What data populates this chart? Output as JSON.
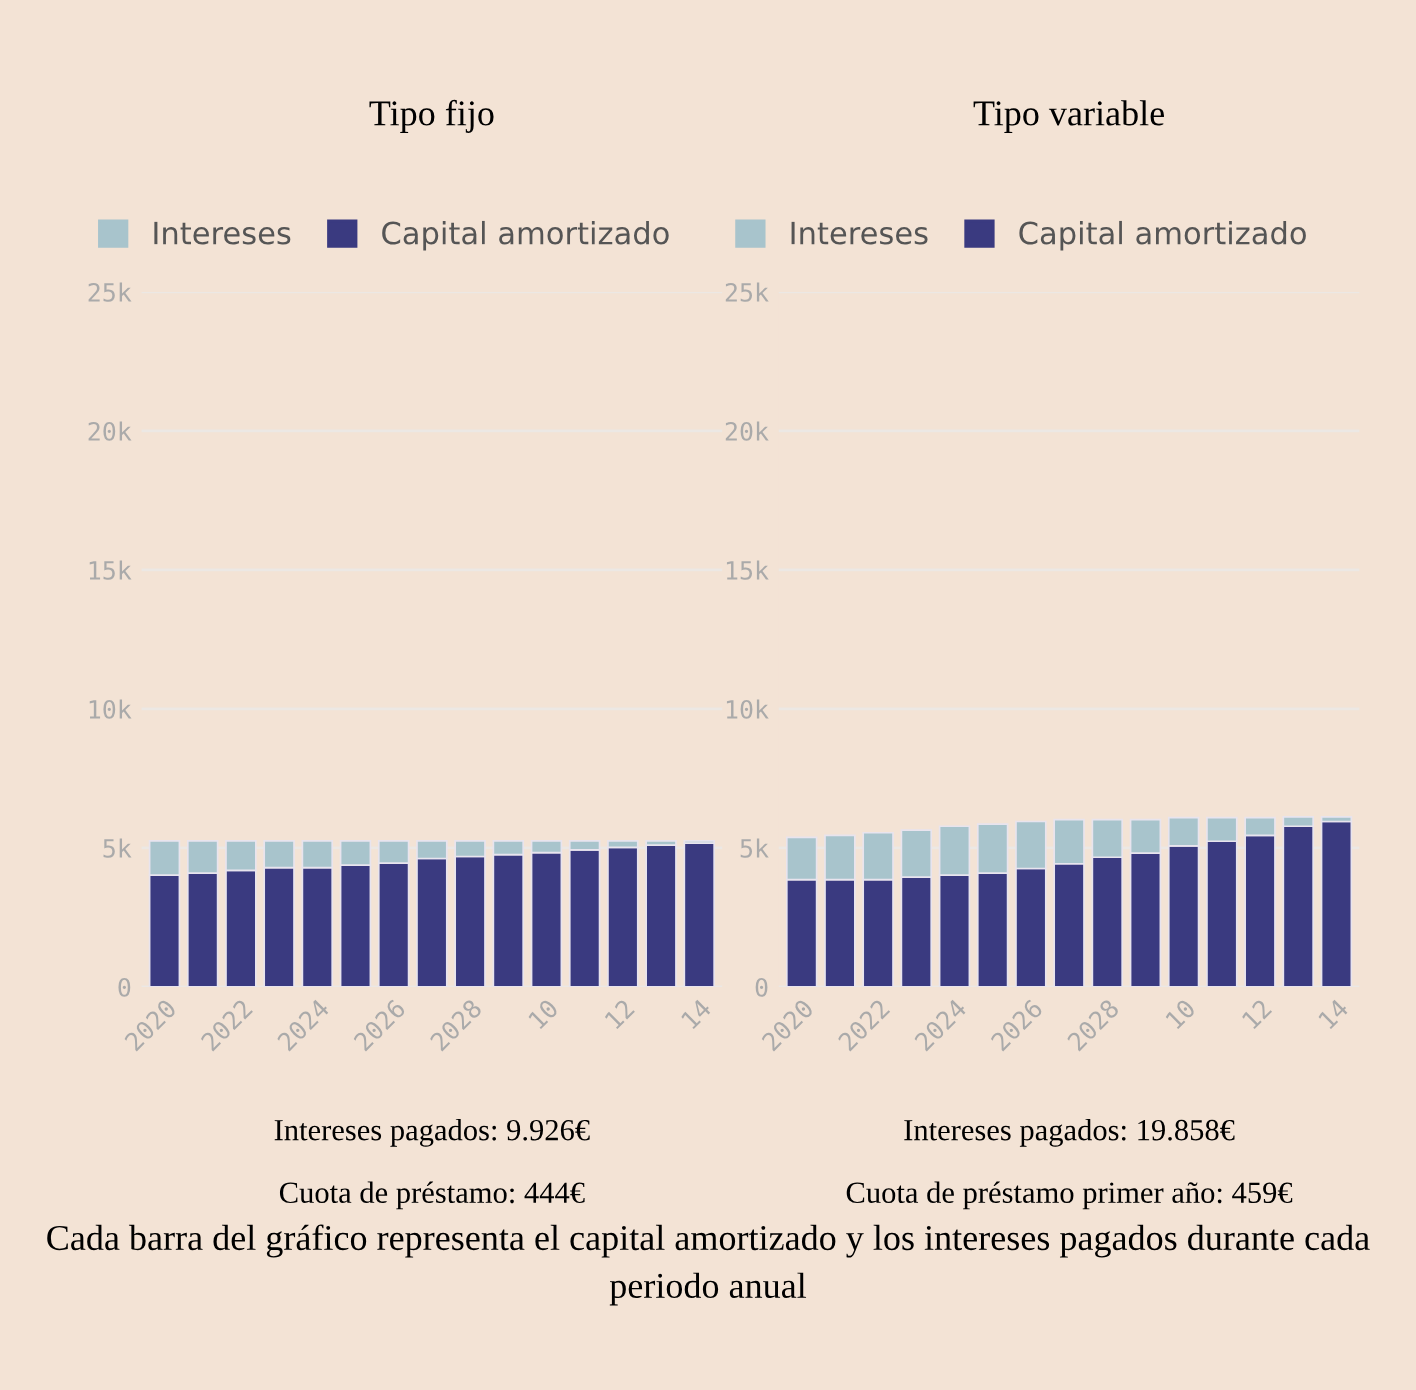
{
  "chart_data": [
    {
      "type": "bar",
      "title": "Tipo fijo",
      "stacked": true,
      "legend": "top left",
      "grid": "y",
      "categories": [
        "2020",
        null,
        "2022",
        null,
        "2024",
        null,
        "2026",
        null,
        "2028",
        null,
        "10",
        null,
        "12",
        null,
        "14"
      ],
      "series": [
        {
          "name": "Capital amortizado",
          "color": "#3a3a80",
          "values": [
            4020,
            4090,
            4190,
            4290,
            4290,
            4380,
            4450,
            4620,
            4690,
            4760,
            4830,
            4930,
            5020,
            5100,
            5170
          ]
        },
        {
          "name": "Intereses",
          "color": "#a8c4cc",
          "values": [
            1230,
            1160,
            1060,
            960,
            960,
            870,
            800,
            630,
            560,
            490,
            420,
            320,
            230,
            150,
            80
          ]
        }
      ],
      "ylim": [
        0,
        25000
      ],
      "yticks": [
        0,
        {
          "value": 5000,
          "label": "5k"
        },
        {
          "value": 10000,
          "label": "10k"
        },
        {
          "value": 15000,
          "label": "15k"
        },
        {
          "value": 20000,
          "label": "20k"
        },
        {
          "value": 25000,
          "label": "25k"
        }
      ],
      "annotations": [
        "Intereses pagados: 9.926€",
        "Cuota de préstamo: 444€"
      ]
    },
    {
      "type": "bar",
      "title": "Tipo variable",
      "stacked": true,
      "legend": "top left",
      "grid": "y",
      "categories": [
        "2020",
        null,
        "2022",
        null,
        "2024",
        null,
        "2026",
        null,
        "2028",
        null,
        "10",
        null,
        "12",
        null,
        "14"
      ],
      "series": [
        {
          "name": "Capital amortizado",
          "color": "#3a3a80",
          "values": [
            3860,
            3860,
            3860,
            3950,
            4020,
            4095,
            4260,
            4430,
            4665,
            4810,
            5070,
            5240,
            5450,
            5780,
            5950
          ]
        },
        {
          "name": "Intereses",
          "color": "#a8c4cc",
          "values": [
            1520,
            1590,
            1685,
            1690,
            1760,
            1760,
            1690,
            1590,
            1355,
            1210,
            1020,
            850,
            640,
            335,
            165
          ]
        }
      ],
      "ylim": [
        0,
        25000
      ],
      "yticks": [
        0,
        {
          "value": 5000,
          "label": "5k"
        },
        {
          "value": 10000,
          "label": "10k"
        },
        {
          "value": 15000,
          "label": "15k"
        },
        {
          "value": 20000,
          "label": "20k"
        },
        {
          "value": 25000,
          "label": "25k"
        }
      ],
      "annotations": [
        "Intereses pagados: 19.858€",
        "Cuota de préstamo primer año: 459€",
        "Cada barra del gráfico representa el capital amortizado y los intereses pagados durante cada periodo anual"
      ]
    }
  ]
}
